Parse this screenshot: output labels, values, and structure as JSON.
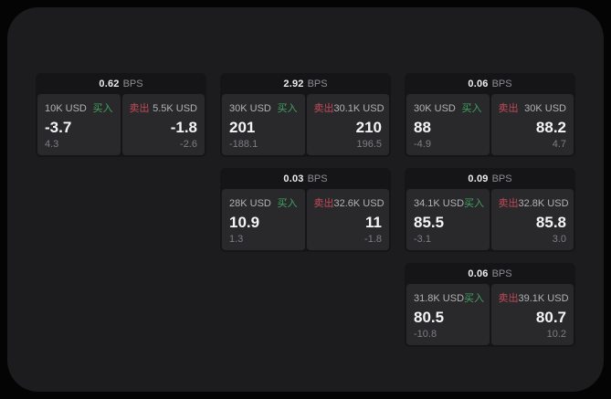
{
  "labels": {
    "bps_unit": "BPS",
    "buy": "买入",
    "sell": "卖出"
  },
  "colors": {
    "buy": "#41a35f",
    "sell": "#c24a58",
    "page_bg": "#1c1c1e",
    "card_bg": "#151517",
    "panel_bg": "#29292c"
  },
  "cards": [
    {
      "row": 1,
      "col": 1,
      "bps": "0.62",
      "buy": {
        "size": "10K USD",
        "price": "-3.7",
        "delta": "4.3"
      },
      "sell": {
        "size": "5.5K USD",
        "price": "-1.8",
        "delta": "-2.6"
      }
    },
    {
      "row": 1,
      "col": 2,
      "bps": "2.92",
      "buy": {
        "size": "30K USD",
        "price": "201",
        "delta": "-188.1"
      },
      "sell": {
        "size": "30.1K USD",
        "price": "210",
        "delta": "196.5"
      }
    },
    {
      "row": 1,
      "col": 3,
      "bps": "0.06",
      "buy": {
        "size": "30K USD",
        "price": "88",
        "delta": "-4.9"
      },
      "sell": {
        "size": "30K USD",
        "price": "88.2",
        "delta": "4.7"
      }
    },
    {
      "row": 2,
      "col": 2,
      "bps": "0.03",
      "buy": {
        "size": "28K USD",
        "price": "10.9",
        "delta": "1.3"
      },
      "sell": {
        "size": "32.6K USD",
        "price": "11",
        "delta": "-1.8"
      }
    },
    {
      "row": 2,
      "col": 3,
      "bps": "0.09",
      "buy": {
        "size": "34.1K USD",
        "price": "85.5",
        "delta": "-3.1"
      },
      "sell": {
        "size": "32.8K USD",
        "price": "85.8",
        "delta": "3.0"
      }
    },
    {
      "row": 3,
      "col": 3,
      "bps": "0.06",
      "buy": {
        "size": "31.8K USD",
        "price": "80.5",
        "delta": "-10.8"
      },
      "sell": {
        "size": "39.1K USD",
        "price": "80.7",
        "delta": "10.2"
      }
    }
  ]
}
